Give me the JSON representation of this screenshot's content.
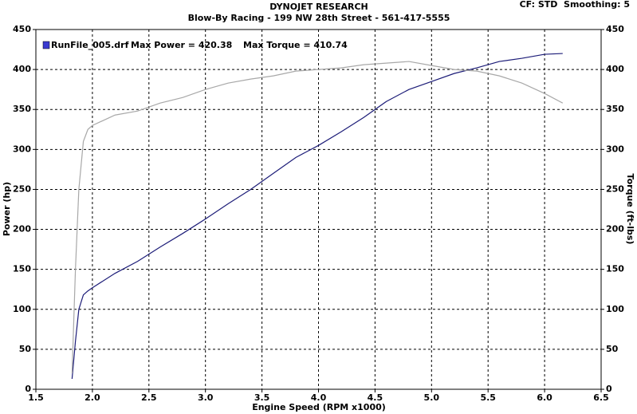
{
  "chart_data": {
    "type": "line",
    "title": "DYNOJET RESEARCH",
    "subtitle": "Blow-By Racing - 199 NW 28th Street - 561-417-5555",
    "settings_text": "CF: STD  Smoothing: 5",
    "xlabel": "Engine Speed (RPM x1000)",
    "ylabel": "Power (hp)",
    "y2label": "Torque (ft-lbs)",
    "annotations": [
      "Max Power = 420.38",
      "Max Torque = 410.74"
    ],
    "x": [
      1.82,
      1.85,
      1.88,
      1.92,
      1.96,
      2.0,
      2.2,
      2.4,
      2.6,
      2.8,
      3.0,
      3.2,
      3.4,
      3.6,
      3.8,
      4.0,
      4.2,
      4.4,
      4.6,
      4.8,
      5.0,
      5.2,
      5.4,
      5.6,
      5.8,
      6.0,
      6.16
    ],
    "series": [
      {
        "name": "RunFile_005.drf",
        "color": "#1c1c78",
        "values": [
          13,
          60,
          100,
          118,
          123,
          127,
          145,
          160,
          178,
          195,
          213,
          232,
          250,
          270,
          290,
          305,
          322,
          340,
          360,
          375,
          385,
          395,
          402,
          410,
          414,
          419,
          420
        ]
      },
      {
        "color": "#a8a8a8",
        "axis": "y2",
        "values": [
          20,
          150,
          250,
          310,
          325,
          330,
          343,
          348,
          358,
          365,
          375,
          383,
          388,
          392,
          398,
          400,
          402,
          406,
          408,
          410,
          405,
          400,
          398,
          392,
          383,
          370,
          358
        ]
      }
    ],
    "xlim": [
      1.5,
      6.5
    ],
    "xticks": [
      1.5,
      {
        "value": 2,
        "label": "2.0"
      },
      2.5,
      {
        "value": 3,
        "label": "3.0"
      },
      3.5,
      {
        "value": 4,
        "label": "4.0"
      },
      4.5,
      {
        "value": 5,
        "label": "5.0"
      },
      5.5,
      {
        "value": 6,
        "label": "6.0"
      },
      6.5
    ],
    "ylim": [
      0,
      450
    ],
    "yticks": [
      0,
      50,
      100,
      150,
      200,
      250,
      300,
      350,
      400,
      450
    ],
    "y2lim": [
      0,
      450
    ],
    "y2ticks": [
      0,
      50,
      100,
      150,
      200,
      250,
      300,
      350,
      400,
      450
    ],
    "grid": true
  }
}
